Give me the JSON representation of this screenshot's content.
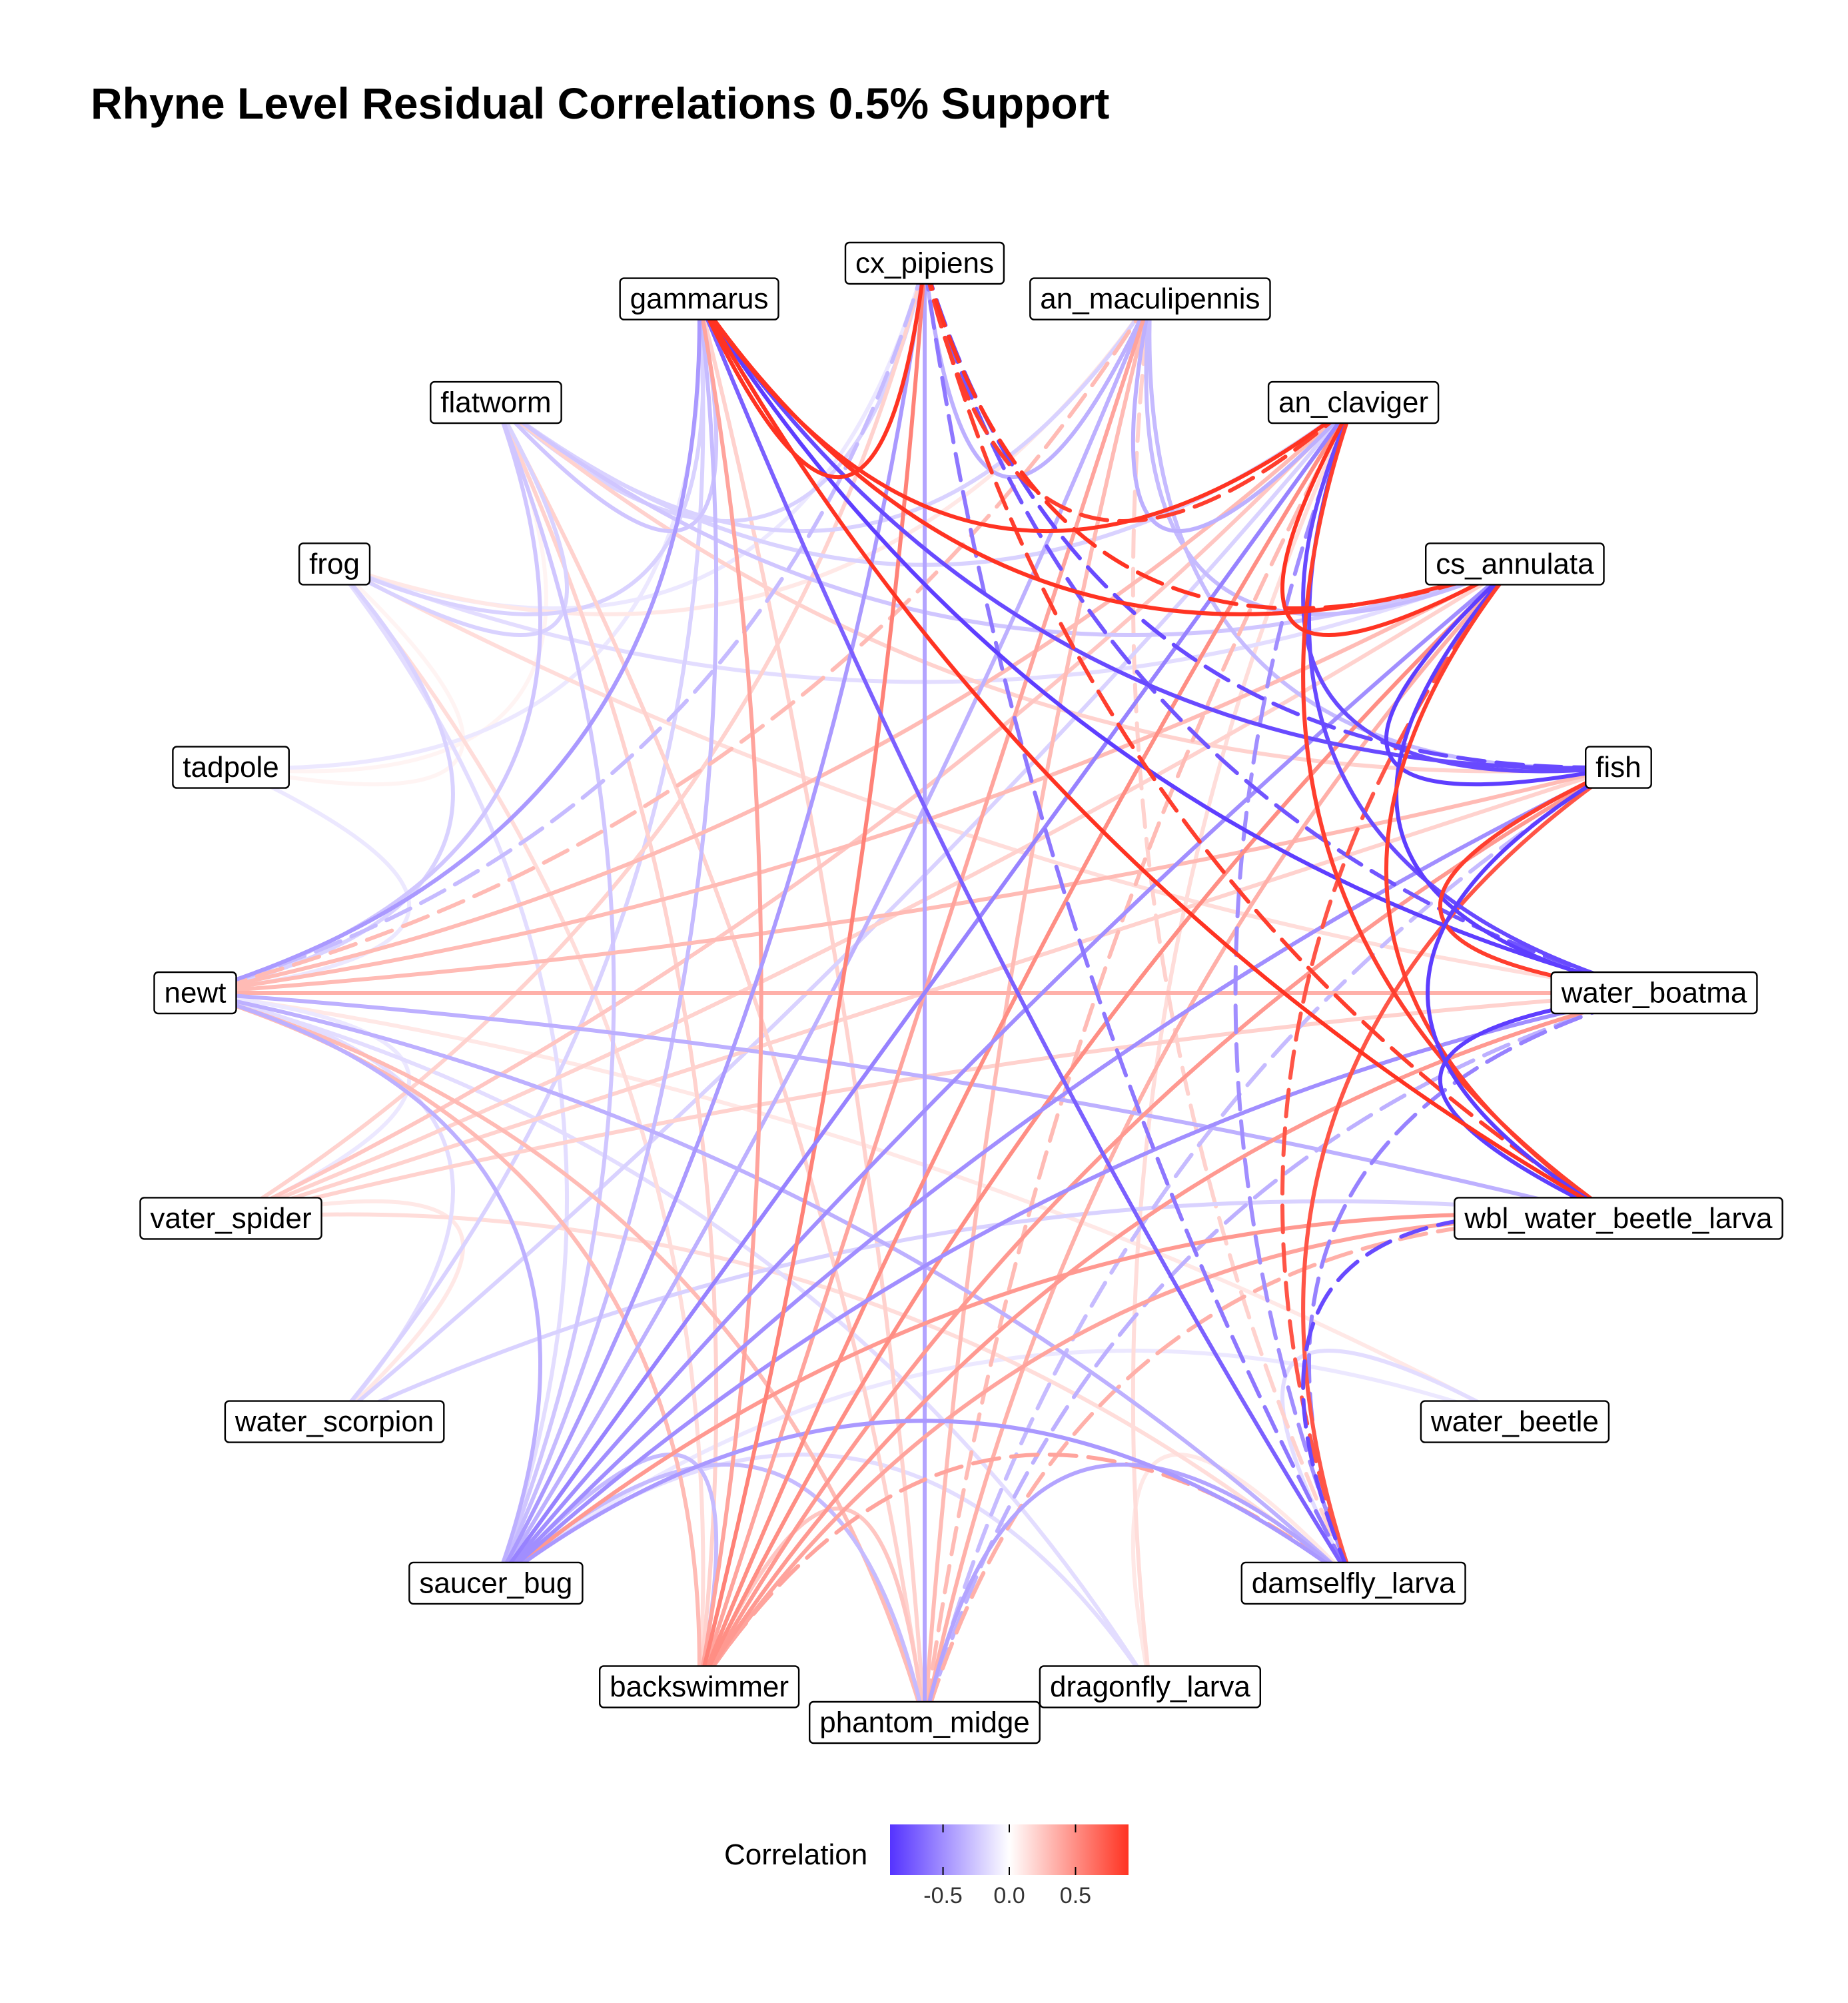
{
  "chart_data": {
    "type": "network",
    "title": "Rhyne Level Residual Correlations 0.5% Support",
    "nodes": [
      "gammarus",
      "cx_pipiens",
      "an_maculipennis",
      "an_claviger",
      "cs_annulata",
      "fish",
      "water_boatman",
      "wbl_water_beetle_larva",
      "water_beetle",
      "damselfly_larva",
      "dragonfly_larva",
      "phantom_midge",
      "backswimmer",
      "saucer_bug",
      "water_scorpion",
      "water_spider",
      "newt",
      "tadpole",
      "frog",
      "flatworm"
    ],
    "node_labels": {
      "gammarus": "gammarus",
      "cx_pipiens": "cx_pipiens",
      "an_maculipennis": "an_maculipennis",
      "an_claviger": "an_claviger",
      "cs_annulata": "cs_annulata",
      "fish": "fish",
      "water_boatman": "water_boatma",
      "wbl_water_beetle_larva": "wbl_water_beetle_larva",
      "water_beetle": "water_beetle",
      "damselfly_larva": "damselfly_larva",
      "dragonfly_larva": "dragonfly_larva",
      "phantom_midge": "phantom_midge",
      "backswimmer": "backswimmer",
      "saucer_bug": "saucer_bug",
      "water_scorpion": "water_scorpion",
      "water_spider": "vater_spider",
      "newt": "newt",
      "tadpole": "tadpole",
      "frog": "frog",
      "flatworm": "flatworm"
    },
    "edges": [
      {
        "source": "gammarus",
        "target": "cx_pipiens",
        "correlation": 0.9,
        "significant": true
      },
      {
        "source": "gammarus",
        "target": "an_claviger",
        "correlation": 0.9,
        "significant": true
      },
      {
        "source": "gammarus",
        "target": "cs_annulata",
        "correlation": 0.9,
        "significant": true
      },
      {
        "source": "gammarus",
        "target": "fish",
        "correlation": -0.8,
        "significant": true
      },
      {
        "source": "gammarus",
        "target": "water_boatman",
        "correlation": -0.85,
        "significant": true
      },
      {
        "source": "gammarus",
        "target": "wbl_water_beetle_larva",
        "correlation": 0.9,
        "significant": true
      },
      {
        "source": "gammarus",
        "target": "damselfly_larva",
        "correlation": -0.7,
        "significant": true
      },
      {
        "source": "gammarus",
        "target": "newt",
        "correlation": -0.45,
        "significant": true
      },
      {
        "source": "gammarus",
        "target": "flatworm",
        "correlation": -0.25,
        "significant": true
      },
      {
        "source": "gammarus",
        "target": "backswimmer",
        "correlation": 0.4,
        "significant": true
      },
      {
        "source": "gammarus",
        "target": "saucer_bug",
        "correlation": -0.3,
        "significant": true
      },
      {
        "source": "gammarus",
        "target": "frog",
        "correlation": -0.2,
        "significant": true
      },
      {
        "source": "gammarus",
        "target": "tadpole",
        "correlation": -0.1,
        "significant": true
      },
      {
        "source": "gammarus",
        "target": "water_scorpion",
        "correlation": -0.2,
        "significant": true
      },
      {
        "source": "gammarus",
        "target": "phantom_midge",
        "correlation": 0.2,
        "significant": true
      },
      {
        "source": "cx_pipiens",
        "target": "an_maculipennis",
        "correlation": -0.35,
        "significant": true
      },
      {
        "source": "cx_pipiens",
        "target": "an_claviger",
        "correlation": 0.85,
        "significant": false
      },
      {
        "source": "cx_pipiens",
        "target": "cs_annulata",
        "correlation": 0.9,
        "significant": false
      },
      {
        "source": "cx_pipiens",
        "target": "fish",
        "correlation": -0.8,
        "significant": false
      },
      {
        "source": "cx_pipiens",
        "target": "water_boatman",
        "correlation": -0.75,
        "significant": false
      },
      {
        "source": "cx_pipiens",
        "target": "wbl_water_beetle_larva",
        "correlation": 0.85,
        "significant": false
      },
      {
        "source": "cx_pipiens",
        "target": "damselfly_larva",
        "correlation": -0.6,
        "significant": false
      },
      {
        "source": "cx_pipiens",
        "target": "backswimmer",
        "correlation": 0.55,
        "significant": true
      },
      {
        "source": "cx_pipiens",
        "target": "saucer_bug",
        "correlation": -0.45,
        "significant": true
      },
      {
        "source": "cx_pipiens",
        "target": "phantom_midge",
        "correlation": -0.4,
        "significant": true
      },
      {
        "source": "cx_pipiens",
        "target": "newt",
        "correlation": -0.3,
        "significant": false
      },
      {
        "source": "cx_pipiens",
        "target": "flatworm",
        "correlation": -0.2,
        "significant": true
      },
      {
        "source": "cx_pipiens",
        "target": "water_spider",
        "correlation": 0.2,
        "significant": true
      },
      {
        "source": "cx_pipiens",
        "target": "frog",
        "correlation": -0.1,
        "significant": true
      },
      {
        "source": "an_maculipennis",
        "target": "an_claviger",
        "correlation": -0.35,
        "significant": true
      },
      {
        "source": "an_maculipennis",
        "target": "cs_annulata",
        "correlation": -0.3,
        "significant": true
      },
      {
        "source": "an_maculipennis",
        "target": "fish",
        "correlation": -0.3,
        "significant": true
      },
      {
        "source": "an_maculipennis",
        "target": "backswimmer",
        "correlation": 0.4,
        "significant": true
      },
      {
        "source": "an_maculipennis",
        "target": "saucer_bug",
        "correlation": -0.35,
        "significant": true
      },
      {
        "source": "an_maculipennis",
        "target": "newt",
        "correlation": 0.3,
        "significant": false
      },
      {
        "source": "an_maculipennis",
        "target": "phantom_midge",
        "correlation": 0.3,
        "significant": true
      },
      {
        "source": "an_maculipennis",
        "target": "flatworm",
        "correlation": -0.2,
        "significant": true
      },
      {
        "source": "an_maculipennis",
        "target": "damselfly_larva",
        "correlation": 0.2,
        "significant": false
      },
      {
        "source": "an_maculipennis",
        "target": "frog",
        "correlation": 0.1,
        "significant": true
      },
      {
        "source": "an_claviger",
        "target": "cs_annulata",
        "correlation": 0.9,
        "significant": true
      },
      {
        "source": "an_claviger",
        "target": "fish",
        "correlation": -0.8,
        "significant": true
      },
      {
        "source": "an_claviger",
        "target": "water_boatman",
        "correlation": -0.8,
        "significant": true
      },
      {
        "source": "an_claviger",
        "target": "wbl_water_beetle_larva",
        "correlation": 0.85,
        "significant": true
      },
      {
        "source": "an_claviger",
        "target": "damselfly_larva",
        "correlation": -0.5,
        "significant": false
      },
      {
        "source": "an_claviger",
        "target": "newt",
        "correlation": 0.3,
        "significant": true
      },
      {
        "source": "an_claviger",
        "target": "saucer_bug",
        "correlation": -0.55,
        "significant": true
      },
      {
        "source": "an_claviger",
        "target": "backswimmer",
        "correlation": 0.5,
        "significant": true
      },
      {
        "source": "an_claviger",
        "target": "water_spider",
        "correlation": 0.25,
        "significant": true
      },
      {
        "source": "an_claviger",
        "target": "flatworm",
        "correlation": -0.2,
        "significant": true
      },
      {
        "source": "an_claviger",
        "target": "water_scorpion",
        "correlation": -0.2,
        "significant": true
      },
      {
        "source": "an_claviger",
        "target": "phantom_midge",
        "correlation": 0.3,
        "significant": false
      },
      {
        "source": "an_claviger",
        "target": "dragonfly_larva",
        "correlation": 0.15,
        "significant": true
      },
      {
        "source": "cs_annulata",
        "target": "fish",
        "correlation": -0.85,
        "significant": true
      },
      {
        "source": "cs_annulata",
        "target": "water_boatman",
        "correlation": -0.85,
        "significant": true
      },
      {
        "source": "cs_annulata",
        "target": "wbl_water_beetle_larva",
        "correlation": 0.85,
        "significant": true
      },
      {
        "source": "cs_annulata",
        "target": "damselfly_larva",
        "correlation": 0.75,
        "significant": false
      },
      {
        "source": "cs_annulata",
        "target": "newt",
        "correlation": 0.3,
        "significant": true
      },
      {
        "source": "cs_annulata",
        "target": "saucer_bug",
        "correlation": -0.5,
        "significant": true
      },
      {
        "source": "cs_annulata",
        "target": "backswimmer",
        "correlation": 0.5,
        "significant": true
      },
      {
        "source": "cs_annulata",
        "target": "water_spider",
        "correlation": 0.2,
        "significant": true
      },
      {
        "source": "cs_annulata",
        "target": "frog",
        "correlation": -0.15,
        "significant": true
      },
      {
        "source": "cs_annulata",
        "target": "phantom_midge",
        "correlation": 0.35,
        "significant": true
      },
      {
        "source": "cs_annulata",
        "target": "flatworm",
        "correlation": -0.25,
        "significant": true
      },
      {
        "source": "fish",
        "target": "water_boatman",
        "correlation": 0.85,
        "significant": true
      },
      {
        "source": "fish",
        "target": "wbl_water_beetle_larva",
        "correlation": -0.85,
        "significant": true
      },
      {
        "source": "fish",
        "target": "damselfly_larva",
        "correlation": 0.75,
        "significant": true
      },
      {
        "source": "fish",
        "target": "newt",
        "correlation": 0.3,
        "significant": true
      },
      {
        "source": "fish",
        "target": "saucer_bug",
        "correlation": -0.5,
        "significant": true
      },
      {
        "source": "fish",
        "target": "backswimmer",
        "correlation": 0.45,
        "significant": true
      },
      {
        "source": "fish",
        "target": "water_spider",
        "correlation": 0.2,
        "significant": true
      },
      {
        "source": "fish",
        "target": "phantom_midge",
        "correlation": -0.3,
        "significant": false
      },
      {
        "source": "fish",
        "target": "flatworm",
        "correlation": 0.2,
        "significant": true
      },
      {
        "source": "water_boatman",
        "target": "wbl_water_beetle_larva",
        "correlation": -0.85,
        "significant": true
      },
      {
        "source": "water_boatman",
        "target": "damselfly_larva",
        "correlation": -0.55,
        "significant": false
      },
      {
        "source": "water_boatman",
        "target": "newt",
        "correlation": 0.35,
        "significant": true
      },
      {
        "source": "water_boatman",
        "target": "saucer_bug",
        "correlation": -0.5,
        "significant": true
      },
      {
        "source": "water_boatman",
        "target": "backswimmer",
        "correlation": 0.45,
        "significant": true
      },
      {
        "source": "water_boatman",
        "target": "water_spider",
        "correlation": 0.2,
        "significant": true
      },
      {
        "source": "water_boatman",
        "target": "phantom_midge",
        "correlation": -0.35,
        "significant": false
      },
      {
        "source": "water_boatman",
        "target": "frog",
        "correlation": 0.15,
        "significant": true
      },
      {
        "source": "wbl_water_beetle_larva",
        "target": "damselfly_larva",
        "correlation": -0.8,
        "significant": false
      },
      {
        "source": "wbl_water_beetle_larva",
        "target": "newt",
        "correlation": -0.35,
        "significant": true
      },
      {
        "source": "wbl_water_beetle_larva",
        "target": "saucer_bug",
        "correlation": 0.45,
        "significant": true
      },
      {
        "source": "wbl_water_beetle_larva",
        "target": "backswimmer",
        "correlation": 0.4,
        "significant": true
      },
      {
        "source": "wbl_water_beetle_larva",
        "target": "phantom_midge",
        "correlation": 0.35,
        "significant": false
      },
      {
        "source": "wbl_water_beetle_larva",
        "target": "water_scorpion",
        "correlation": -0.2,
        "significant": true
      },
      {
        "source": "water_beetle",
        "target": "damselfly_larva",
        "correlation": -0.15,
        "significant": true
      },
      {
        "source": "water_beetle",
        "target": "newt",
        "correlation": 0.1,
        "significant": true
      },
      {
        "source": "water_beetle",
        "target": "saucer_bug",
        "correlation": -0.1,
        "significant": true
      },
      {
        "source": "damselfly_larva",
        "target": "newt",
        "correlation": -0.35,
        "significant": true
      },
      {
        "source": "damselfly_larva",
        "target": "saucer_bug",
        "correlation": -0.45,
        "significant": true
      },
      {
        "source": "damselfly_larva",
        "target": "backswimmer",
        "correlation": 0.4,
        "significant": false
      },
      {
        "source": "damselfly_larva",
        "target": "phantom_midge",
        "correlation": -0.4,
        "significant": true
      },
      {
        "source": "damselfly_larva",
        "target": "water_spider",
        "correlation": 0.15,
        "significant": true
      },
      {
        "source": "damselfly_larva",
        "target": "dragonfly_larva",
        "correlation": 0.1,
        "significant": true
      },
      {
        "source": "dragonfly_larva",
        "target": "newt",
        "correlation": -0.15,
        "significant": true
      },
      {
        "source": "dragonfly_larva",
        "target": "saucer_bug",
        "correlation": -0.15,
        "significant": true
      },
      {
        "source": "phantom_midge",
        "target": "newt",
        "correlation": 0.3,
        "significant": true
      },
      {
        "source": "phantom_midge",
        "target": "saucer_bug",
        "correlation": -0.3,
        "significant": true
      },
      {
        "source": "phantom_midge",
        "target": "backswimmer",
        "correlation": 0.25,
        "significant": true
      },
      {
        "source": "phantom_midge",
        "target": "flatworm",
        "correlation": 0.2,
        "significant": true
      },
      {
        "source": "backswimmer",
        "target": "newt",
        "correlation": 0.3,
        "significant": true
      },
      {
        "source": "backswimmer",
        "target": "saucer_bug",
        "correlation": -0.3,
        "significant": true
      },
      {
        "source": "backswimmer",
        "target": "flatworm",
        "correlation": 0.2,
        "significant": true
      },
      {
        "source": "backswimmer",
        "target": "frog",
        "correlation": 0.15,
        "significant": true
      },
      {
        "source": "saucer_bug",
        "target": "newt",
        "correlation": -0.35,
        "significant": true
      },
      {
        "source": "saucer_bug",
        "target": "flatworm",
        "correlation": -0.25,
        "significant": true
      },
      {
        "source": "saucer_bug",
        "target": "frog",
        "correlation": -0.15,
        "significant": true
      },
      {
        "source": "water_scorpion",
        "target": "newt",
        "correlation": -0.15,
        "significant": true
      },
      {
        "source": "water_scorpion",
        "target": "water_spider",
        "correlation": 0.1,
        "significant": true
      },
      {
        "source": "water_spider",
        "target": "newt",
        "correlation": -0.1,
        "significant": true
      },
      {
        "source": "newt",
        "target": "tadpole",
        "correlation": -0.1,
        "significant": true
      },
      {
        "source": "newt",
        "target": "frog",
        "correlation": -0.2,
        "significant": true
      },
      {
        "source": "newt",
        "target": "flatworm",
        "correlation": -0.25,
        "significant": true
      },
      {
        "source": "tadpole",
        "target": "frog",
        "correlation": 0.05,
        "significant": true
      },
      {
        "source": "tadpole",
        "target": "flatworm",
        "correlation": 0.05,
        "significant": true
      },
      {
        "source": "frog",
        "target": "flatworm",
        "correlation": -0.2,
        "significant": true
      }
    ],
    "legend": {
      "title": "Correlation",
      "tick_labels": [
        "-0.5",
        "0.0",
        "0.5"
      ],
      "tick_values": [
        -0.5,
        0.0,
        0.5
      ],
      "range": [
        -0.9,
        0.9
      ],
      "low_color": "#5533ff",
      "mid_color": "#ffffff",
      "high_color": "#ff3322",
      "placement": "bottom"
    }
  }
}
